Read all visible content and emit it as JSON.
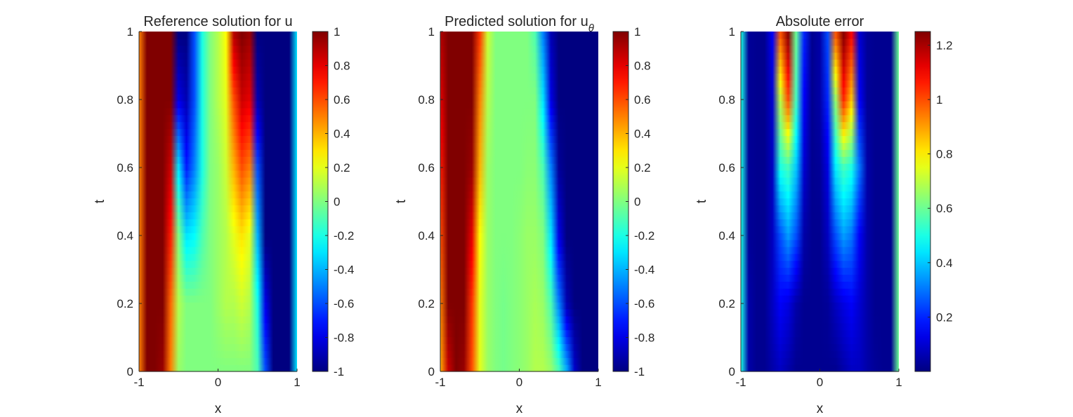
{
  "chart_data": [
    {
      "type": "heatmap",
      "title": "Reference solution for u",
      "title_sub": "",
      "xlabel": "x",
      "ylabel": "t",
      "xlim": [
        -1,
        1
      ],
      "ylim": [
        0,
        1
      ],
      "xticks": [
        {
          "v": -1,
          "label": "-1"
        },
        {
          "v": 0,
          "label": "0"
        },
        {
          "v": 1,
          "label": "1"
        }
      ],
      "yticks": [
        {
          "v": 0,
          "label": "0"
        },
        {
          "v": 0.2,
          "label": "0.2"
        },
        {
          "v": 0.4,
          "label": "0.4"
        },
        {
          "v": 0.6,
          "label": "0.6"
        },
        {
          "v": 0.8,
          "label": "0.8"
        },
        {
          "v": 1,
          "label": "1"
        }
      ],
      "colormap": "jet",
      "clim": [
        -1,
        1
      ],
      "colorbar_ticks": [
        {
          "v": -1,
          "label": "-1"
        },
        {
          "v": -0.8,
          "label": "-0.8"
        },
        {
          "v": -0.6,
          "label": "-0.6"
        },
        {
          "v": -0.4,
          "label": "-0.4"
        },
        {
          "v": -0.2,
          "label": "-0.2"
        },
        {
          "v": 0,
          "label": "0"
        },
        {
          "v": 0.2,
          "label": "0.2"
        },
        {
          "v": 0.4,
          "label": "0.4"
        },
        {
          "v": 0.6,
          "label": "0.6"
        },
        {
          "v": 0.8,
          "label": "0.8"
        },
        {
          "v": 1,
          "label": "1"
        }
      ],
      "field": {
        "t": [
          0,
          0.2,
          0.4,
          0.6,
          0.8,
          1.0
        ],
        "x": [
          -1.0,
          -0.9,
          -0.8,
          -0.7,
          -0.6,
          -0.5,
          -0.4,
          -0.3,
          -0.2,
          -0.1,
          0.0,
          0.1,
          0.2,
          0.3,
          0.4,
          0.5,
          0.6,
          0.7,
          0.8,
          0.9,
          1.0
        ],
        "values": [
          [
            0.5,
            1,
            1,
            0.95,
            0.5,
            0.05,
            0,
            0,
            0,
            0,
            0,
            0,
            0,
            0,
            0,
            -0.1,
            -0.6,
            -1,
            -1,
            -1,
            -0.3
          ],
          [
            0.5,
            1,
            1,
            1,
            0.55,
            0.1,
            0,
            0,
            0,
            0,
            0.05,
            0.1,
            0.1,
            0.15,
            0.1,
            -0.2,
            -0.8,
            -1,
            -1,
            -1,
            -0.3
          ],
          [
            0.5,
            1,
            1,
            1,
            0.7,
            0,
            -0.3,
            -0.25,
            -0.1,
            0,
            0.05,
            0.1,
            0.2,
            0.3,
            0.2,
            -0.4,
            -1,
            -1,
            -1,
            -1,
            -0.3
          ],
          [
            0.5,
            1,
            1,
            1,
            0.85,
            -0.3,
            -0.7,
            -0.5,
            -0.2,
            0,
            0.05,
            0.15,
            0.4,
            0.6,
            0.5,
            -0.6,
            -1,
            -1,
            -1,
            -1,
            -0.3
          ],
          [
            0.5,
            1,
            1,
            1,
            1,
            -0.8,
            -0.9,
            -0.6,
            -0.2,
            0,
            0.1,
            0.2,
            0.6,
            0.85,
            0.8,
            -0.9,
            -1,
            -1,
            -1,
            -1,
            -0.3
          ],
          [
            0.5,
            1,
            1,
            1,
            1,
            -1,
            -1,
            -0.6,
            -0.2,
            0,
            0.1,
            0.25,
            0.9,
            1,
            0.95,
            -1,
            -1,
            -1,
            -1,
            -1,
            -0.3
          ]
        ]
      }
    },
    {
      "type": "heatmap",
      "title": "Predicted solution for u",
      "title_sub": "θ",
      "xlabel": "x",
      "ylabel": "t",
      "xlim": [
        -1,
        1
      ],
      "ylim": [
        0,
        1
      ],
      "xticks": [
        {
          "v": -1,
          "label": "-1"
        },
        {
          "v": 0,
          "label": "0"
        },
        {
          "v": 1,
          "label": "1"
        }
      ],
      "yticks": [
        {
          "v": 0,
          "label": "0"
        },
        {
          "v": 0.2,
          "label": "0.2"
        },
        {
          "v": 0.4,
          "label": "0.4"
        },
        {
          "v": 0.6,
          "label": "0.6"
        },
        {
          "v": 0.8,
          "label": "0.8"
        },
        {
          "v": 1,
          "label": "1"
        }
      ],
      "colormap": "jet",
      "clim": [
        -1,
        1
      ],
      "colorbar_ticks": [
        {
          "v": -1,
          "label": "-1"
        },
        {
          "v": -0.8,
          "label": "-0.8"
        },
        {
          "v": -0.6,
          "label": "-0.6"
        },
        {
          "v": -0.4,
          "label": "-0.4"
        },
        {
          "v": -0.2,
          "label": "-0.2"
        },
        {
          "v": 0,
          "label": "0"
        },
        {
          "v": 0.2,
          "label": "0.2"
        },
        {
          "v": 0.4,
          "label": "0.4"
        },
        {
          "v": 0.6,
          "label": "0.6"
        },
        {
          "v": 0.8,
          "label": "0.8"
        },
        {
          "v": 1,
          "label": "1"
        }
      ],
      "field": {
        "t": [
          0,
          0.2,
          0.4,
          0.6,
          0.8,
          1.0
        ],
        "x": [
          -1.0,
          -0.9,
          -0.8,
          -0.7,
          -0.6,
          -0.5,
          -0.4,
          -0.3,
          -0.2,
          -0.1,
          0.0,
          0.1,
          0.2,
          0.3,
          0.4,
          0.5,
          0.6,
          0.7,
          0.8,
          0.9,
          1.0
        ],
        "values": [
          [
            0.4,
            0.85,
            1,
            0.95,
            0.6,
            0.2,
            0.05,
            0,
            -0.02,
            0,
            0.02,
            0.05,
            0.1,
            0.1,
            0.05,
            -0.1,
            -0.4,
            -0.85,
            -1,
            -1,
            -1
          ],
          [
            0.5,
            1,
            1,
            1,
            0.65,
            0.2,
            0.05,
            0,
            -0.02,
            0,
            0.02,
            0.05,
            0.08,
            0.05,
            -0.1,
            -0.5,
            -0.9,
            -1,
            -1,
            -1,
            -1
          ],
          [
            0.6,
            1,
            1,
            1,
            0.8,
            0.25,
            0.05,
            0,
            0,
            0,
            0.02,
            0.05,
            0.05,
            0,
            -0.3,
            -0.8,
            -1,
            -1,
            -1,
            -1,
            -1
          ],
          [
            0.7,
            1,
            1,
            1,
            0.95,
            0.4,
            0.05,
            0,
            0,
            0,
            0,
            0.02,
            0.02,
            -0.1,
            -0.5,
            -0.95,
            -1,
            -1,
            -1,
            -1,
            -1
          ],
          [
            0.8,
            1,
            1,
            1,
            1,
            0.5,
            0.1,
            0,
            0,
            0,
            0,
            0,
            0,
            -0.3,
            -0.8,
            -1,
            -1,
            -1,
            -1,
            -1,
            -1
          ],
          [
            0.9,
            1,
            1,
            1,
            1,
            0.65,
            0.15,
            0,
            0,
            0,
            0,
            0,
            -0.1,
            -0.5,
            -0.9,
            -1,
            -1,
            -1,
            -1,
            -1,
            -1
          ]
        ]
      }
    },
    {
      "type": "heatmap",
      "title": "Absolute error",
      "title_sub": "",
      "xlabel": "x",
      "ylabel": "t",
      "xlim": [
        -1,
        1
      ],
      "ylim": [
        0,
        1
      ],
      "xticks": [
        {
          "v": -1,
          "label": "-1"
        },
        {
          "v": 0,
          "label": "0"
        },
        {
          "v": 1,
          "label": "1"
        }
      ],
      "yticks": [
        {
          "v": 0,
          "label": "0"
        },
        {
          "v": 0.2,
          "label": "0.2"
        },
        {
          "v": 0.4,
          "label": "0.4"
        },
        {
          "v": 0.6,
          "label": "0.6"
        },
        {
          "v": 0.8,
          "label": "0.8"
        },
        {
          "v": 1,
          "label": "1"
        }
      ],
      "colormap": "jet",
      "clim": [
        0,
        1.25
      ],
      "colorbar_ticks": [
        {
          "v": 0.2,
          "label": "0.2"
        },
        {
          "v": 0.4,
          "label": "0.4"
        },
        {
          "v": 0.6,
          "label": "0.6"
        },
        {
          "v": 0.8,
          "label": "0.8"
        },
        {
          "v": 1.0,
          "label": "1"
        },
        {
          "v": 1.2,
          "label": "1.2"
        }
      ],
      "field": {
        "t": [
          0,
          0.2,
          0.4,
          0.6,
          0.8,
          1.0
        ],
        "x": [
          -1.0,
          -0.9,
          -0.8,
          -0.7,
          -0.6,
          -0.5,
          -0.4,
          -0.3,
          -0.2,
          -0.1,
          0.0,
          0.1,
          0.2,
          0.3,
          0.4,
          0.5,
          0.6,
          0.7,
          0.8,
          0.9,
          1.0
        ],
        "values": [
          [
            0.5,
            0.05,
            0.02,
            0.02,
            0.05,
            0.08,
            0.05,
            0.02,
            0.02,
            0.02,
            0.02,
            0.02,
            0.02,
            0.05,
            0.08,
            0.08,
            0.05,
            0.03,
            0.02,
            0.02,
            0.6
          ],
          [
            0.5,
            0.05,
            0.02,
            0.02,
            0.08,
            0.15,
            0.12,
            0.05,
            0.02,
            0.02,
            0.02,
            0.03,
            0.08,
            0.12,
            0.15,
            0.1,
            0.05,
            0.02,
            0.02,
            0.02,
            0.6
          ],
          [
            0.5,
            0.03,
            0.02,
            0.02,
            0.08,
            0.25,
            0.35,
            0.25,
            0.05,
            0.02,
            0.02,
            0.08,
            0.25,
            0.35,
            0.3,
            0.15,
            0.05,
            0.02,
            0.02,
            0.02,
            0.6
          ],
          [
            0.5,
            0.03,
            0.02,
            0.02,
            0.08,
            0.5,
            0.55,
            0.4,
            0.1,
            0.02,
            0.03,
            0.12,
            0.45,
            0.55,
            0.5,
            0.3,
            0.05,
            0.02,
            0.02,
            0.02,
            0.6
          ],
          [
            0.5,
            0.03,
            0.02,
            0.02,
            0.1,
            0.7,
            1.0,
            0.55,
            0.15,
            0.02,
            0.05,
            0.2,
            0.65,
            1.05,
            0.85,
            0.15,
            0.03,
            0.02,
            0.02,
            0.02,
            0.6
          ],
          [
            0.5,
            0.03,
            0.02,
            0.02,
            0.15,
            1.0,
            1.25,
            0.6,
            0.2,
            0.02,
            0.05,
            0.25,
            1.0,
            1.25,
            1.1,
            0.1,
            0.03,
            0.02,
            0.02,
            0.02,
            0.6
          ]
        ]
      }
    }
  ]
}
